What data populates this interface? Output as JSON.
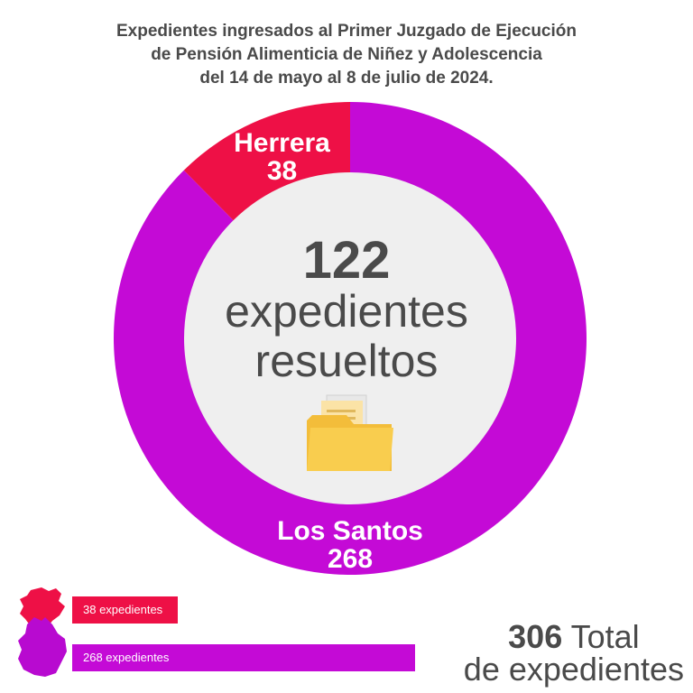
{
  "title": {
    "line1": "Expedientes ingresados al Primer Juzgado de Ejecución",
    "line2": "de Pensión Alimenticia de Niñez y Adolescencia",
    "line3": "del 14 de mayo al 8 de julio de 2024."
  },
  "chart_data": {
    "type": "pie",
    "title": "Expedientes ingresados al Primer Juzgado de Ejecución de Pensión Alimenticia de Niñez y Adolescencia del 14 de mayo al 8 de julio de 2024.",
    "categories": [
      "Herrera",
      "Los Santos"
    ],
    "values": [
      38,
      268
    ],
    "colors": [
      "#ee1046",
      "#c40ad6"
    ],
    "legend": [
      {
        "label": "38 expedientes",
        "value": 38,
        "color": "#ee1046"
      },
      {
        "label": "268 expedientes",
        "value": 268,
        "color": "#c40ad6"
      }
    ]
  },
  "center": {
    "number": "122",
    "line1": "expedientes",
    "line2": "resueltos",
    "icon": "folder-icon"
  },
  "legend_icons": [
    "herrera-map-icon",
    "los-santos-map-icon"
  ],
  "total": {
    "number": "306",
    "word": "Total",
    "line2": "de expedientes"
  }
}
